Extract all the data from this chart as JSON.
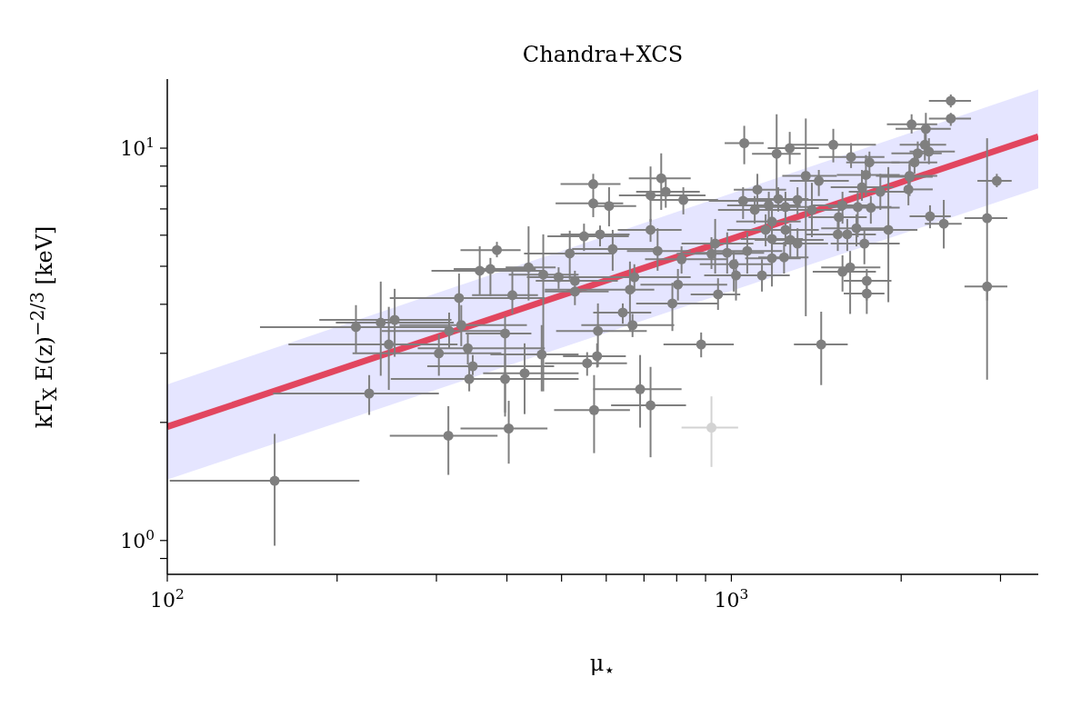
{
  "chart_data": {
    "type": "scatter",
    "title": "Chandra+XCS",
    "xlabel": "μ$_{⋆}$",
    "ylabel": "kT$_{X}$ E(z)$^{−2/3}$ [keV]",
    "log": "xy",
    "xlim": [
      100,
      3500
    ],
    "ylim": [
      0.82,
      15
    ],
    "xticks": [
      {
        "value": 100,
        "label": "10$^{2}$"
      },
      {
        "value": 200,
        "label": null
      },
      {
        "value": 300,
        "label": null
      },
      {
        "value": 400,
        "label": null
      },
      {
        "value": 500,
        "label": null
      },
      {
        "value": 600,
        "label": null
      },
      {
        "value": 700,
        "label": null
      },
      {
        "value": 800,
        "label": null
      },
      {
        "value": 900,
        "label": null
      },
      {
        "value": 1000,
        "label": "10$^{3}$"
      },
      {
        "value": 2000,
        "label": null
      },
      {
        "value": 3000,
        "label": null
      }
    ],
    "yticks": [
      {
        "value": 0.9,
        "label": null
      },
      {
        "value": 1,
        "label": "10$^{0}$"
      },
      {
        "value": 2,
        "label": null
      },
      {
        "value": 3,
        "label": null
      },
      {
        "value": 4,
        "label": null
      },
      {
        "value": 5,
        "label": null
      },
      {
        "value": 6,
        "label": null
      },
      {
        "value": 7,
        "label": null
      },
      {
        "value": 8,
        "label": null
      },
      {
        "value": 9,
        "label": null
      },
      {
        "value": 10,
        "label": "10$^{1}$"
      }
    ],
    "series": [
      {
        "type": "line",
        "color": "#e0102a",
        "x": [
          100,
          3500
        ],
        "values": [
          1.95,
          10.7
        ],
        "lower": [
          1.43,
          7.9
        ],
        "upper": [
          2.5,
          14.1
        ]
      },
      {
        "marker": "circle",
        "color": "#7f7f7f",
        "x": [
          155,
          216,
          239,
          253,
          247,
          228,
          315,
          329,
          303,
          316,
          332,
          341,
          348,
          343,
          384,
          358,
          374,
          409,
          397,
          397,
          403,
          430,
          437,
          464,
          461,
          494,
          517,
          528,
          528,
          548,
          585,
          616,
          569,
          569,
          607,
          555,
          578,
          580,
          571,
          642,
          668,
          661,
          673,
          689,
          719,
          719,
          751,
          765,
          822,
          719,
          740,
          786,
          804,
          816,
          884,
          1054,
          1203,
          1269,
          1516,
          1630,
          1757,
          1355,
          1429,
          1112,
          1049,
          1211,
          1310,
          1247,
          1165,
          1100,
          1389,
          1180,
          1150,
          1247,
          1272,
          1180,
          1310,
          1067,
          936,
          922,
          983,
          1010,
          1019,
          1133,
          1180,
          1240,
          947,
          1574,
          1675,
          1767,
          1704,
          1732,
          1837,
          2070,
          2060,
          1550,
          1544,
          1605,
          1666,
          1721,
          1898,
          1624,
          1574,
          1738,
          1738,
          1443,
          2449,
          2449,
          2087,
          2212,
          2203,
          2140,
          2240,
          2112,
          2070,
          2955,
          2250,
          2380,
          2840,
          2840
        ],
        "values": [
          1.42,
          3.5,
          3.59,
          3.65,
          3.16,
          2.37,
          1.85,
          4.15,
          3.0,
          3.42,
          3.54,
          3.09,
          2.78,
          2.58,
          5.5,
          4.87,
          4.92,
          4.22,
          3.37,
          2.58,
          1.93,
          2.67,
          4.97,
          4.76,
          2.98,
          4.69,
          5.39,
          4.59,
          4.31,
          5.96,
          6.03,
          5.53,
          8.1,
          7.23,
          7.12,
          2.83,
          2.95,
          3.42,
          2.15,
          3.81,
          3.54,
          4.36,
          4.69,
          2.43,
          2.21,
          7.58,
          8.38,
          7.74,
          7.38,
          6.19,
          5.47,
          4.02,
          4.49,
          5.21,
          3.16,
          10.3,
          9.68,
          10.0,
          10.2,
          9.5,
          9.2,
          8.5,
          8.25,
          7.84,
          7.34,
          7.42,
          7.38,
          7.08,
          7.15,
          6.96,
          6.96,
          6.5,
          6.19,
          6.19,
          5.84,
          5.87,
          5.71,
          5.47,
          5.71,
          5.38,
          5.41,
          5.06,
          4.74,
          4.74,
          5.24,
          5.27,
          4.24,
          7.15,
          7.08,
          7.05,
          7.95,
          8.55,
          7.74,
          8.5,
          7.85,
          6.67,
          6.03,
          6.03,
          6.25,
          5.71,
          6.19,
          4.97,
          4.84,
          4.59,
          4.26,
          3.16,
          13.2,
          11.9,
          11.5,
          11.2,
          10.2,
          9.7,
          9.8,
          9.2,
          8.45,
          8.25,
          6.7,
          6.42,
          6.63,
          4.44
        ],
        "xerrors": [
          [
            101,
            219
          ],
          [
            146,
            319
          ],
          [
            199,
            322
          ],
          [
            186,
            319
          ],
          [
            164,
            327
          ],
          [
            154,
            303
          ],
          [
            248,
            385
          ],
          [
            248,
            467
          ],
          [
            213,
            391
          ],
          [
            240,
            403
          ],
          [
            258,
            434
          ],
          [
            278,
            467
          ],
          [
            289,
            485
          ],
          [
            249,
            503
          ],
          [
            331,
            423
          ],
          [
            294,
            467
          ],
          [
            322,
            450
          ],
          [
            347,
            454
          ],
          [
            338,
            442
          ],
          [
            331,
            536
          ],
          [
            331,
            472
          ],
          [
            363,
            536
          ],
          [
            398,
            488
          ],
          [
            403,
            536
          ],
          [
            374,
            536
          ],
          [
            434,
            573
          ],
          [
            429,
            620
          ],
          [
            450,
            629
          ],
          [
            467,
            606
          ],
          [
            472,
            658
          ],
          [
            498,
            660
          ],
          [
            522,
            730
          ],
          [
            498,
            636
          ],
          [
            488,
            643
          ],
          [
            563,
            678
          ],
          [
            467,
            653
          ],
          [
            503,
            650
          ],
          [
            489,
            708
          ],
          [
            485,
            661
          ],
          [
            569,
            721
          ],
          [
            542,
            792
          ],
          [
            467,
            730
          ],
          [
            563,
            847
          ],
          [
            569,
            816
          ],
          [
            612,
            831
          ],
          [
            632,
            900
          ],
          [
            658,
            847
          ],
          [
            678,
            879
          ],
          [
            716,
            947
          ],
          [
            629,
            816
          ],
          [
            653,
            847
          ],
          [
            678,
            947
          ],
          [
            690,
            983
          ],
          [
            703,
            983
          ],
          [
            758,
            1010
          ],
          [
            973,
            1141
          ],
          [
            1088,
            1327
          ],
          [
            1160,
            1429
          ],
          [
            1269,
            1804
          ],
          [
            1429,
            1868
          ],
          [
            1598,
            1988
          ],
          [
            1231,
            1538
          ],
          [
            1269,
            1615
          ],
          [
            1010,
            1250
          ],
          [
            912,
            1180
          ],
          [
            1058,
            1370
          ],
          [
            1180,
            1484
          ],
          [
            1100,
            1394
          ],
          [
            983,
            1327
          ],
          [
            947,
            1269
          ],
          [
            1231,
            1582
          ],
          [
            1020,
            1327
          ],
          [
            983,
            1327
          ],
          [
            1100,
            1429
          ],
          [
            1100,
            1457
          ],
          [
            1039,
            1340
          ],
          [
            1180,
            1484
          ],
          [
            912,
            1231
          ],
          [
            816,
            1094
          ],
          [
            800,
            1058
          ],
          [
            863,
            1143
          ],
          [
            879,
            1180
          ],
          [
            895,
            1180
          ],
          [
            983,
            1269
          ],
          [
            1058,
            1327
          ],
          [
            1116,
            1370
          ],
          [
            847,
            1037
          ],
          [
            1394,
            1786
          ],
          [
            1484,
            1922
          ],
          [
            1598,
            1988
          ],
          [
            1500,
            1937
          ],
          [
            1538,
            1988
          ],
          [
            1615,
            2070
          ],
          [
            1804,
            2317
          ],
          [
            2060,
            2275
          ],
          [
            1370,
            1738
          ],
          [
            1355,
            1786
          ],
          [
            1429,
            1804
          ],
          [
            1443,
            1922
          ],
          [
            1500,
            1988
          ],
          [
            1685,
            2137
          ],
          [
            1443,
            1837
          ],
          [
            1394,
            1804
          ],
          [
            1582,
            1922
          ],
          [
            1582,
            1868
          ],
          [
            1291,
            1608
          ],
          [
            2240,
            2660
          ],
          [
            2240,
            2660
          ],
          [
            1887,
            2317
          ],
          [
            1955,
            2449
          ],
          [
            1988,
            2403
          ],
          [
            1922,
            2360
          ],
          [
            2070,
            2490
          ],
          [
            1922,
            2317
          ],
          [
            1837,
            2275
          ],
          [
            2730,
            3140
          ],
          [
            2070,
            2449
          ],
          [
            2203,
            2560
          ],
          [
            2590,
            3085
          ],
          [
            2590,
            3085
          ]
        ],
        "errors": [
          [
            0.97,
            1.87
          ],
          [
            3.0,
            3.98
          ],
          [
            2.63,
            4.57
          ],
          [
            2.94,
            4.38
          ],
          [
            2.42,
            3.94
          ],
          [
            2.09,
            2.64
          ],
          [
            1.47,
            2.2
          ],
          [
            3.57,
            4.79
          ],
          [
            2.63,
            3.35
          ],
          [
            3.08,
            3.81
          ],
          [
            3.13,
            3.98
          ],
          [
            2.81,
            3.39
          ],
          [
            2.64,
            2.97
          ],
          [
            2.4,
            2.81
          ],
          [
            5.27,
            5.77
          ],
          [
            4.24,
            5.62
          ],
          [
            4.2,
            5.25
          ],
          [
            3.78,
            4.87
          ],
          [
            2.07,
            3.73
          ],
          [
            2.12,
            2.97
          ],
          [
            1.57,
            2.27
          ],
          [
            2.1,
            3.18
          ],
          [
            4.09,
            6.32
          ],
          [
            2.4,
            6.03
          ],
          [
            2.4,
            3.54
          ],
          [
            4.38,
            4.97
          ],
          [
            4.62,
            6.16
          ],
          [
            4.59,
            4.87
          ],
          [
            3.98,
            4.54
          ],
          [
            5.47,
            6.42
          ],
          [
            5.62,
            6.35
          ],
          [
            4.87,
            6.19
          ],
          [
            7.66,
            8.6
          ],
          [
            6.67,
            7.66
          ],
          [
            6.32,
            7.95
          ],
          [
            2.63,
            3.02
          ],
          [
            2.76,
            3.18
          ],
          [
            2.77,
            4.02
          ],
          [
            1.67,
            2.64
          ],
          [
            3.57,
            4.02
          ],
          [
            3.3,
            3.78
          ],
          [
            3.42,
            5.14
          ],
          [
            4.31,
            5.06
          ],
          [
            1.94,
            2.97
          ],
          [
            1.63,
            2.77
          ],
          [
            6.5,
            8.98
          ],
          [
            6.96,
            9.7
          ],
          [
            7.05,
            8.38
          ],
          [
            6.78,
            7.95
          ],
          [
            5.77,
            6.6
          ],
          [
            4.87,
            6.25
          ],
          [
            3.42,
            4.54
          ],
          [
            4.09,
            4.92
          ],
          [
            4.79,
            5.62
          ],
          [
            2.93,
            3.39
          ],
          [
            9.1,
            11.4
          ],
          [
            7.34,
            12.2
          ],
          [
            9.1,
            11.0
          ],
          [
            9.2,
            11.2
          ],
          [
            8.9,
            10.3
          ],
          [
            8.4,
            9.8
          ],
          [
            3.73,
            11.9
          ],
          [
            7.55,
            8.8
          ],
          [
            6.96,
            8.6
          ],
          [
            6.6,
            7.95
          ],
          [
            6.89,
            7.95
          ],
          [
            6.78,
            7.95
          ],
          [
            6.42,
            7.74
          ],
          [
            6.6,
            7.74
          ],
          [
            6.42,
            7.55
          ],
          [
            5.93,
            8.16
          ],
          [
            6.5,
            7.15
          ],
          [
            5.62,
            6.78
          ],
          [
            5.62,
            6.78
          ],
          [
            5.23,
            6.42
          ],
          [
            4.92,
            6.42
          ],
          [
            5.23,
            6.25
          ],
          [
            4.79,
            6.1
          ],
          [
            4.79,
            6.6
          ],
          [
            4.92,
            5.93
          ],
          [
            4.79,
            6.1
          ],
          [
            4.31,
            5.47
          ],
          [
            4.09,
            5.21
          ],
          [
            4.31,
            5.21
          ],
          [
            4.44,
            5.77
          ],
          [
            4.79,
            5.77
          ],
          [
            3.87,
            4.66
          ],
          [
            6.42,
            7.74
          ],
          [
            5.93,
            7.74
          ],
          [
            6.42,
            7.55
          ],
          [
            7.34,
            8.8
          ],
          [
            7.55,
            9.6
          ],
          [
            6.96,
            8.6
          ],
          [
            7.55,
            9.3
          ],
          [
            7.15,
            8.6
          ],
          [
            6.1,
            7.34
          ],
          [
            5.47,
            6.6
          ],
          [
            5.47,
            6.6
          ],
          [
            5.62,
            6.78
          ],
          [
            5.06,
            6.25
          ],
          [
            4.05,
            8.95
          ],
          [
            3.78,
            5.47
          ],
          [
            4.31,
            5.33
          ],
          [
            4.09,
            4.92
          ],
          [
            3.78,
            4.66
          ],
          [
            2.49,
            3.83
          ],
          [
            12.7,
            13.7
          ],
          [
            11.4,
            12.3
          ],
          [
            10.9,
            12.2
          ],
          [
            9.95,
            12.3
          ],
          [
            9.3,
            11.0
          ],
          [
            9.1,
            10.4
          ],
          [
            9.1,
            10.6
          ],
          [
            8.6,
            9.8
          ],
          [
            7.74,
            9.1
          ],
          [
            7.95,
            8.6
          ],
          [
            6.25,
            7.15
          ],
          [
            5.55,
            7.38
          ],
          [
            4.09,
            10.6
          ],
          [
            2.57,
            4.44
          ]
        ]
      },
      {
        "marker": "circle",
        "color": "#d3d3d3",
        "x": [
          922
        ],
        "values": [
          1.94
        ],
        "xerrors": [
          [
            816,
            1028
          ]
        ],
        "errors": [
          [
            1.54,
            2.33
          ]
        ]
      }
    ]
  }
}
